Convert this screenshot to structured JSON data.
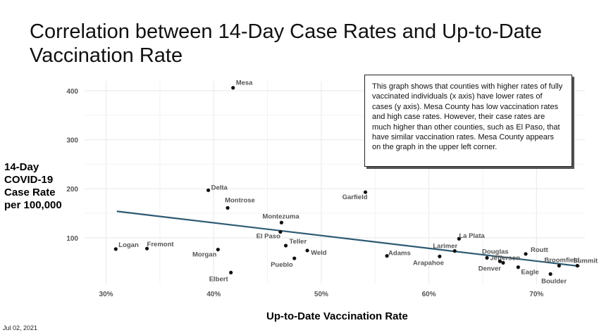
{
  "title": "Correlation between 14-Day Case Rates and Up-to-Date Vaccination Rate",
  "footer_date": "Jul 02, 2021",
  "note": "This graph shows that counties with higher rates of fully vaccinated individuals (x axis) have lower rates of cases (y axis). Mesa County has low vaccination rates and high case rates. However, their case rates are much higher than other counties, such as El Paso, that have similar vaccination rates. Mesa County appears on the graph in the upper left corner.",
  "colors": {
    "point": "#111111",
    "trendline": "#2e5a74",
    "grid": "#e8e8e8",
    "text": "#555555"
  },
  "chart_data": {
    "type": "scatter",
    "title": "Correlation between 14-Day Case Rates and Up-to-Date Vaccination Rate",
    "xlabel": "Up-to-Date Vaccination Rate",
    "ylabel": [
      "14-Day",
      "COVID-19",
      "Case Rate",
      "per 100,000"
    ],
    "xlim": [
      0.28,
      0.745
    ],
    "ylim": [
      5,
      420
    ],
    "xticks": [
      {
        "value": 0.3,
        "label": "30%"
      },
      {
        "value": 0.4,
        "label": "40%"
      },
      {
        "value": 0.5,
        "label": "50%"
      },
      {
        "value": 0.6,
        "label": "60%"
      },
      {
        "value": 0.7,
        "label": "70%"
      }
    ],
    "yticks": [
      {
        "value": 100,
        "label": "100"
      },
      {
        "value": 200,
        "label": "200"
      },
      {
        "value": 300,
        "label": "300"
      },
      {
        "value": 400,
        "label": "400"
      }
    ],
    "grid": true,
    "points": [
      {
        "label": "Mesa",
        "x": 0.418,
        "y": 406
      },
      {
        "label": "Delta",
        "x": 0.395,
        "y": 197
      },
      {
        "label": "Garfield",
        "x": 0.541,
        "y": 193
      },
      {
        "label": "Montrose",
        "x": 0.413,
        "y": 161
      },
      {
        "label": "Montezuma",
        "x": 0.463,
        "y": 131
      },
      {
        "label": "El Paso",
        "x": 0.462,
        "y": 112
      },
      {
        "label": "La Plata",
        "x": 0.628,
        "y": 98
      },
      {
        "label": "Teller",
        "x": 0.467,
        "y": 84
      },
      {
        "label": "Logan",
        "x": 0.309,
        "y": 77
      },
      {
        "label": "Fremont",
        "x": 0.338,
        "y": 78
      },
      {
        "label": "Morgan",
        "x": 0.404,
        "y": 76
      },
      {
        "label": "Weld",
        "x": 0.487,
        "y": 74
      },
      {
        "label": "Larimer",
        "x": 0.624,
        "y": 73
      },
      {
        "label": "Routt",
        "x": 0.69,
        "y": 67
      },
      {
        "label": "Adams",
        "x": 0.561,
        "y": 63
      },
      {
        "label": "Arapahoe",
        "x": 0.61,
        "y": 62
      },
      {
        "label": "Douglas",
        "x": 0.654,
        "y": 59
      },
      {
        "label": "Pueblo",
        "x": 0.475,
        "y": 58
      },
      {
        "label": "Jefferson",
        "x": 0.666,
        "y": 52
      },
      {
        "label": "Denver",
        "x": 0.669,
        "y": 49
      },
      {
        "label": "Broomfield",
        "x": 0.721,
        "y": 43
      },
      {
        "label": "Summit",
        "x": 0.738,
        "y": 43
      },
      {
        "label": "Eagle",
        "x": 0.683,
        "y": 40
      },
      {
        "label": "Elbert",
        "x": 0.416,
        "y": 29
      },
      {
        "label": "Boulder",
        "x": 0.713,
        "y": 26
      }
    ],
    "trendline": {
      "x": [
        0.31,
        0.74
      ],
      "y": [
        154,
        42
      ]
    }
  }
}
